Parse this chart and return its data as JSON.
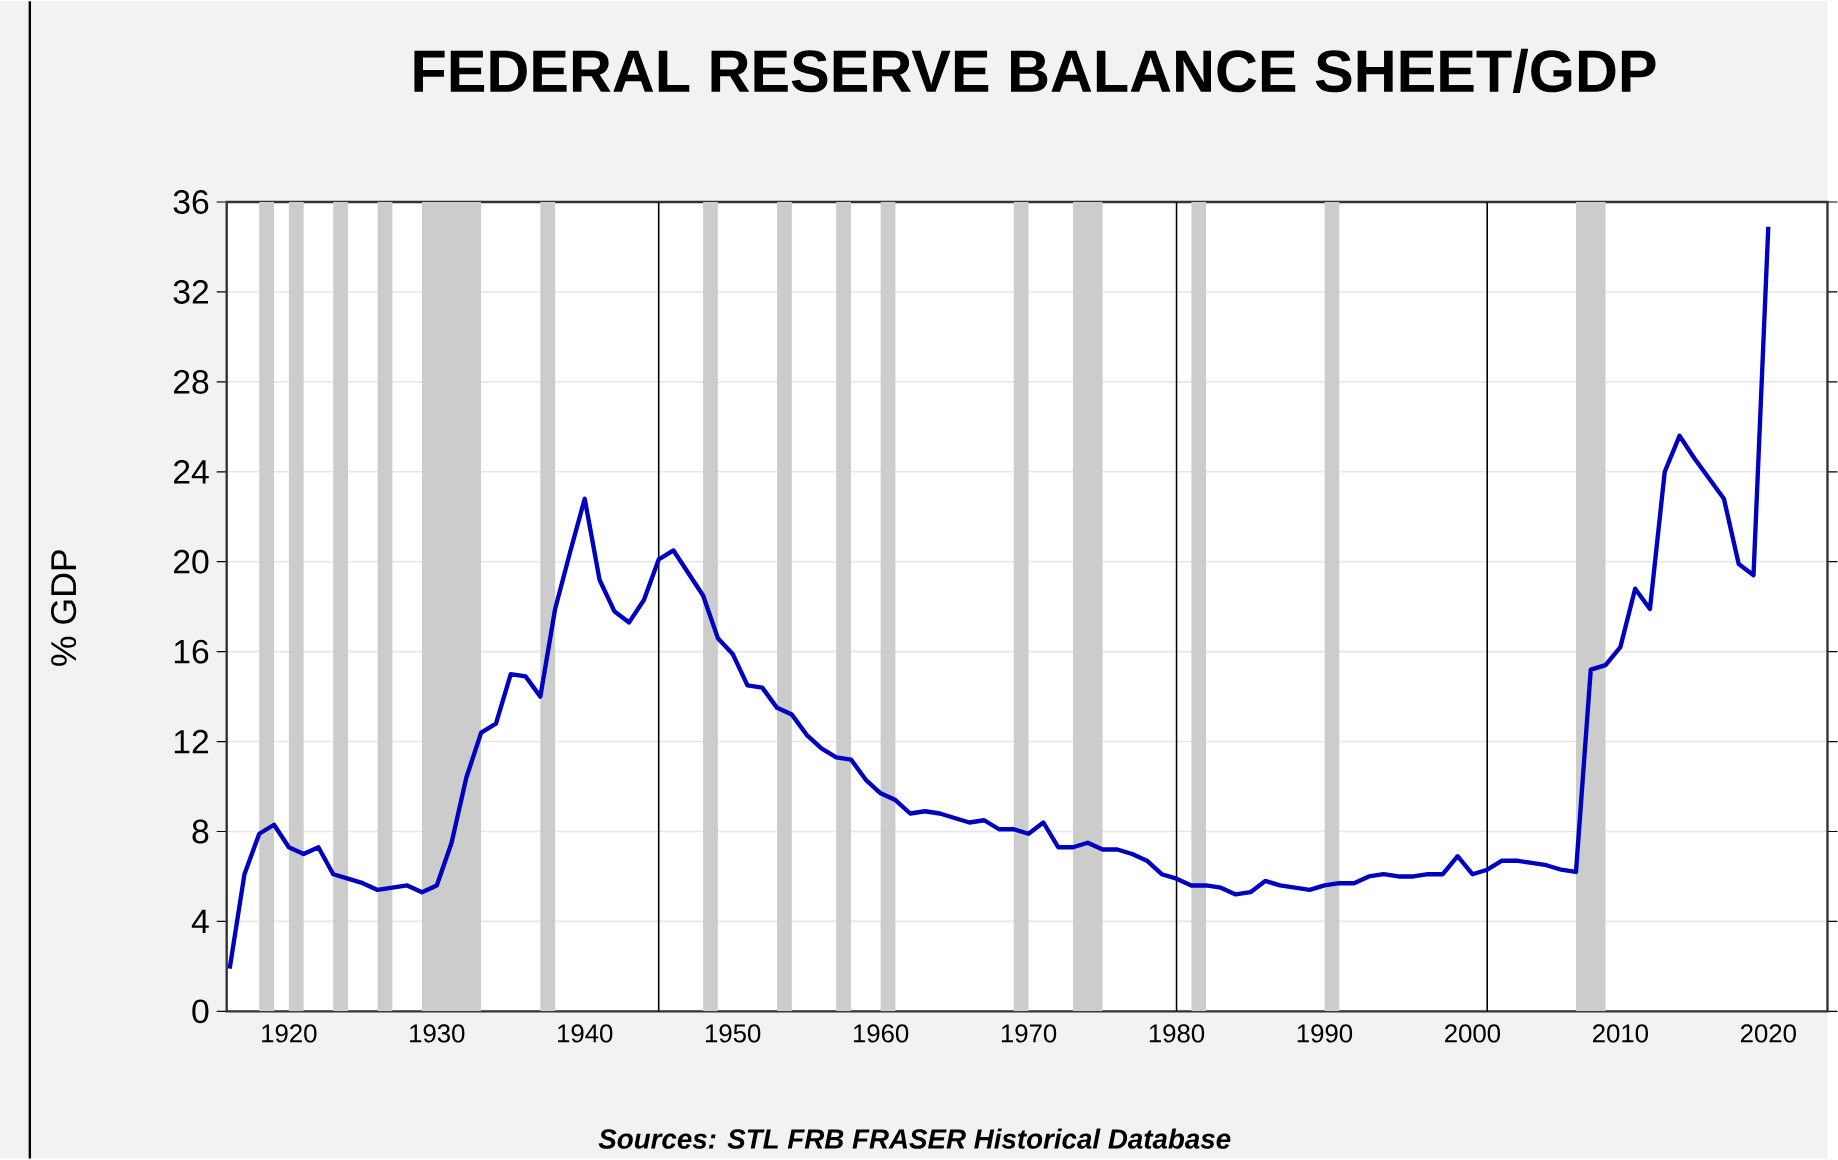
{
  "chart_data": {
    "type": "line",
    "title": "FEDERAL RESERVE BALANCE SHEET/GDP",
    "ylabel": "% GDP",
    "annotations": [
      "Sources:  STL FRB FRASER Historical Database"
    ],
    "x": [
      1916,
      1917,
      1918,
      1919,
      1920,
      1921,
      1922,
      1923,
      1924,
      1925,
      1926,
      1927,
      1928,
      1929,
      1930,
      1931,
      1932,
      1933,
      1934,
      1935,
      1936,
      1937,
      1938,
      1939,
      1940,
      1941,
      1942,
      1943,
      1944,
      1945,
      1946,
      1947,
      1948,
      1949,
      1950,
      1951,
      1952,
      1953,
      1954,
      1955,
      1956,
      1957,
      1958,
      1959,
      1960,
      1961,
      1962,
      1963,
      1964,
      1965,
      1966,
      1967,
      1968,
      1969,
      1970,
      1971,
      1972,
      1973,
      1974,
      1975,
      1976,
      1977,
      1978,
      1979,
      1980,
      1981,
      1982,
      1983,
      1984,
      1985,
      1986,
      1987,
      1988,
      1989,
      1990,
      1991,
      1992,
      1993,
      1994,
      1995,
      1996,
      1997,
      1998,
      1999,
      2000,
      2001,
      2002,
      2003,
      2004,
      2005,
      2006,
      2007,
      2008,
      2009,
      2010,
      2011,
      2012,
      2013,
      2014,
      2015,
      2016,
      2017,
      2018,
      2019,
      2020
    ],
    "series": [
      {
        "color": "#0000c0",
        "values": [
          1.9,
          6.1,
          7.9,
          8.3,
          7.3,
          7.0,
          7.3,
          6.1,
          5.9,
          5.7,
          5.4,
          5.5,
          5.6,
          5.3,
          5.6,
          7.5,
          10.4,
          12.4,
          12.8,
          15.0,
          14.9,
          14.0,
          17.9,
          20.4,
          22.8,
          19.2,
          17.8,
          17.3,
          18.3,
          20.1,
          20.5,
          19.5,
          18.5,
          16.6,
          15.9,
          14.5,
          14.4,
          13.5,
          13.2,
          12.3,
          11.7,
          11.3,
          11.2,
          10.3,
          9.7,
          9.4,
          8.8,
          8.9,
          8.8,
          8.6,
          8.4,
          8.5,
          8.1,
          8.1,
          7.9,
          8.4,
          7.3,
          7.3,
          7.5,
          7.2,
          7.2,
          7.0,
          6.7,
          6.1,
          5.9,
          5.6,
          5.6,
          5.5,
          5.2,
          5.3,
          5.8,
          5.6,
          5.5,
          5.4,
          5.6,
          5.7,
          5.7,
          6.0,
          6.1,
          6.0,
          6.0,
          6.1,
          6.1,
          6.9,
          6.1,
          6.3,
          6.7,
          6.7,
          6.6,
          6.5,
          6.3,
          6.2,
          15.2,
          15.4,
          16.2,
          18.8,
          17.9,
          24.0,
          25.6,
          24.6,
          23.7,
          22.8,
          19.9,
          19.4,
          34.9
        ]
      }
    ],
    "xlim": [
      1915.8,
      2024
    ],
    "ylim": [
      0,
      36
    ],
    "xticks": [
      1920,
      1930,
      1940,
      1950,
      1960,
      1970,
      1980,
      1990,
      2000,
      2010,
      2020
    ],
    "yticks": [
      0,
      4,
      8,
      12,
      16,
      20,
      24,
      28,
      32,
      36
    ],
    "grid": "y",
    "line_style": "solid",
    "bands": [
      {
        "axis": "x",
        "from": 1918,
        "to": 1919,
        "color": "#cccccc"
      },
      {
        "axis": "x",
        "from": 1920,
        "to": 1921,
        "color": "#cccccc"
      },
      {
        "axis": "x",
        "from": 1923,
        "to": 1924,
        "color": "#cccccc"
      },
      {
        "axis": "x",
        "from": 1926,
        "to": 1927,
        "color": "#cccccc"
      },
      {
        "axis": "x",
        "from": 1929,
        "to": 1933,
        "color": "#cccccc"
      },
      {
        "axis": "x",
        "from": 1937,
        "to": 1938,
        "color": "#cccccc"
      },
      {
        "axis": "x",
        "from": 1948,
        "to": 1949,
        "color": "#cccccc"
      },
      {
        "axis": "x",
        "from": 1953,
        "to": 1954,
        "color": "#cccccc"
      },
      {
        "axis": "x",
        "from": 1957,
        "to": 1958,
        "color": "#cccccc"
      },
      {
        "axis": "x",
        "from": 1960,
        "to": 1961,
        "color": "#cccccc"
      },
      {
        "axis": "x",
        "from": 1969,
        "to": 1970,
        "color": "#cccccc"
      },
      {
        "axis": "x",
        "from": 1973,
        "to": 1975,
        "color": "#cccccc"
      },
      {
        "axis": "x",
        "from": 1981,
        "to": 1982,
        "color": "#cccccc"
      },
      {
        "axis": "x",
        "from": 1990,
        "to": 1991,
        "color": "#cccccc"
      },
      {
        "axis": "x",
        "from": 2007,
        "to": 2009,
        "color": "#cccccc"
      }
    ],
    "ref_lines": [
      {
        "axis": "x",
        "value": 1945,
        "color": "#000000"
      },
      {
        "axis": "x",
        "value": 1980,
        "color": "#000000"
      },
      {
        "axis": "x",
        "value": 2001,
        "color": "#000000"
      }
    ]
  }
}
